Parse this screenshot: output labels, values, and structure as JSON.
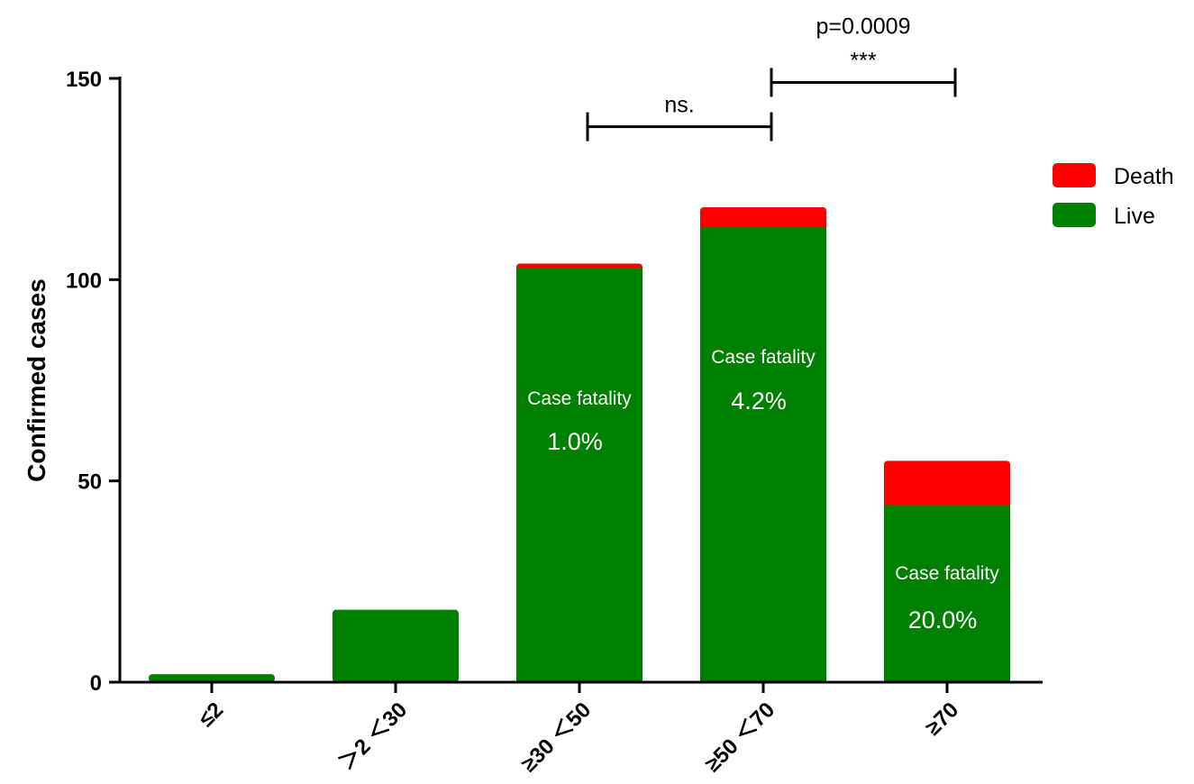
{
  "chart_data": {
    "type": "bar",
    "stacked": true,
    "categories": [
      "≤2",
      "＞2 ＜30",
      "≥30 ＜50",
      "≥50 ＜70",
      "≥70"
    ],
    "series": [
      {
        "name": "Live",
        "color": "#008000",
        "values": [
          2,
          18,
          103,
          113,
          44
        ]
      },
      {
        "name": "Death",
        "color": "#ff0000",
        "values": [
          0,
          0,
          1,
          5,
          11
        ]
      }
    ],
    "ylabel": "Confirmed  cases",
    "xlabel": "",
    "ylim": [
      0,
      150
    ],
    "yticks": [
      0,
      50,
      100,
      150
    ],
    "grid": false,
    "legend": {
      "placement": "right",
      "entries": [
        "Death",
        "Live"
      ]
    },
    "annotations": [
      {
        "category_index": 2,
        "label": "Case fatality",
        "value": "1.0%"
      },
      {
        "category_index": 3,
        "label": "Case fatality",
        "value": "4.2%"
      },
      {
        "category_index": 4,
        "label": "Case fatality",
        "value": "20.0%"
      }
    ],
    "significance": [
      {
        "from": 2,
        "to": 3,
        "y": 138,
        "labels": [
          "ns."
        ]
      },
      {
        "from": 3,
        "to": 4,
        "y": 149,
        "labels": [
          "p=0.0009",
          "***"
        ]
      }
    ]
  }
}
